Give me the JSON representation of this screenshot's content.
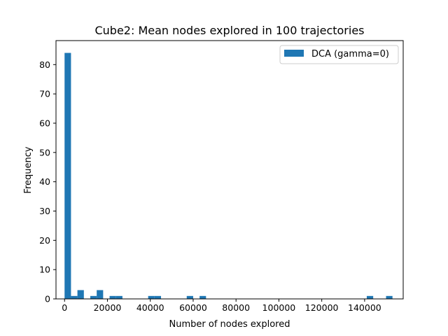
{
  "chart_data": {
    "type": "bar",
    "title": "Cube2: Mean nodes explored in 100 trajectories",
    "xlabel": "Number of nodes explored",
    "ylabel": "Frequency",
    "xlim": [
      -4000,
      158000
    ],
    "ylim": [
      0,
      88.2
    ],
    "xticks": [
      0,
      20000,
      40000,
      60000,
      80000,
      100000,
      120000,
      140000
    ],
    "xtick_labels": [
      "0",
      "20000",
      "40000",
      "60000",
      "80000",
      "100000",
      "120000",
      "140000"
    ],
    "yticks": [
      0,
      10,
      20,
      30,
      40,
      50,
      60,
      70,
      80
    ],
    "ytick_labels": [
      "0",
      "10",
      "20",
      "30",
      "40",
      "50",
      "60",
      "70",
      "80"
    ],
    "bin_width": 3000,
    "bins_start": [
      0,
      3000,
      6000,
      12000,
      15000,
      21000,
      24000,
      39000,
      42000,
      57000,
      63000,
      141000,
      150000
    ],
    "frequencies": [
      84,
      1,
      3,
      1,
      3,
      1,
      1,
      1,
      1,
      1,
      1,
      1,
      1
    ],
    "series": [
      {
        "name": "DCA (gamma=0)",
        "color": "#1f77b4"
      }
    ],
    "legend_position": "top-right",
    "grid": false
  }
}
